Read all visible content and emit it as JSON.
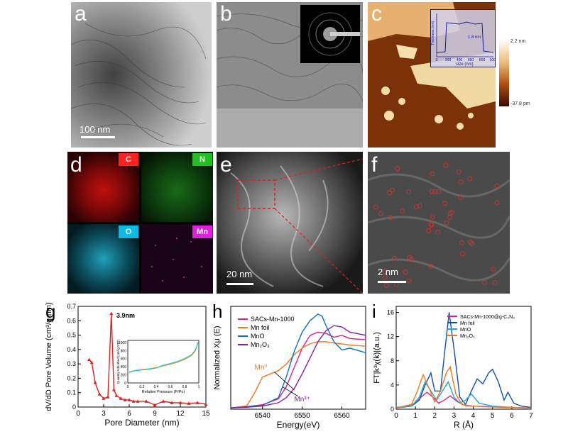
{
  "panels": {
    "a": {
      "label": "a",
      "scale_bar": "100 nm"
    },
    "b": {
      "label": "b"
    },
    "c": {
      "label": "c",
      "inset_xlabel": "size (nm)",
      "inset_ylabel": "Thickness (nm)",
      "inset_annotation": "1.8 nm",
      "inset_xticks": [
        "0",
        "200",
        "400",
        "600",
        "800",
        "1000"
      ],
      "colorbar_top": "2.2 nm",
      "colorbar_bottom": "-37.8 pm"
    },
    "d": {
      "label": "d",
      "maps": [
        {
          "element": "C",
          "color": "#ff2020"
        },
        {
          "element": "N",
          "color": "#20c020"
        },
        {
          "element": "O",
          "color": "#10b8e8"
        },
        {
          "element": "Mn",
          "color": "#e020e0"
        }
      ]
    },
    "e": {
      "label": "e",
      "scale_bar": "20 nm"
    },
    "f": {
      "label": "f",
      "scale_bar": "2 nm"
    },
    "g": {
      "label": "g",
      "annotation": "3.9nm",
      "inset_xlabel": "Relative Pressure (P/Po)",
      "inset_ylabel": "Quantity Adsorbed (cm³/g STP)"
    },
    "h": {
      "label": "h",
      "annotation_mn0": "Mn⁰",
      "annotation_mn3": "Mn³⁺"
    },
    "i": {
      "label": "i"
    }
  },
  "chart_data": [
    {
      "type": "line",
      "panel": "g",
      "xlabel": "Pore Diameter (nm)",
      "ylabel": "dV/dD Pore Volume (cm³/g·nm)",
      "xlim": [
        0,
        15
      ],
      "ylim": [
        0,
        0.7
      ],
      "xticks": [
        0,
        3,
        6,
        9,
        12,
        15
      ],
      "yticks": [
        0.0,
        0.1,
        0.2,
        0.3,
        0.4,
        0.5,
        0.6,
        0.7
      ],
      "series": [
        {
          "color": "#e02020",
          "x": [
            1.3,
            1.6,
            2.0,
            2.5,
            3.0,
            3.5,
            3.9,
            4.2,
            4.5,
            5.0,
            5.5,
            6.0,
            6.5,
            7.0,
            8.0,
            9.0,
            10.0,
            11.0,
            12.0,
            13.0,
            14.0,
            15.0
          ],
          "y": [
            0.33,
            0.31,
            0.17,
            0.09,
            0.06,
            0.07,
            0.65,
            0.12,
            0.08,
            0.06,
            0.05,
            0.05,
            0.04,
            0.04,
            0.04,
            0.015,
            0.04,
            0.03,
            0.03,
            0.025,
            0.03,
            0.02
          ]
        }
      ],
      "inset": {
        "xticks": [
          0.0,
          0.2,
          0.4,
          0.6,
          0.8,
          1.0
        ],
        "yticks": [
          0,
          200,
          400,
          600,
          800,
          1000
        ],
        "series": [
          {
            "color": "#f0a020",
            "x": [
              0.02,
              0.1,
              0.2,
              0.3,
              0.4,
              0.5,
              0.6,
              0.7,
              0.8,
              0.9,
              0.95,
              0.99
            ],
            "y": [
              270,
              310,
              330,
              350,
              380,
              420,
              460,
              510,
              580,
              680,
              790,
              1000
            ]
          },
          {
            "color": "#20c0d0",
            "x": [
              0.02,
              0.1,
              0.2,
              0.3,
              0.4,
              0.5,
              0.6,
              0.7,
              0.8,
              0.9,
              0.95,
              0.99
            ],
            "y": [
              260,
              300,
              320,
              340,
              365,
              440,
              480,
              530,
              600,
              700,
              810,
              1000
            ]
          }
        ]
      }
    },
    {
      "type": "line",
      "panel": "h",
      "xlabel": "Energy(eV)",
      "ylabel": "Normalized Xμ (E)",
      "xlim": [
        6532,
        6566
      ],
      "ylim": [
        0,
        1.6
      ],
      "xticks": [
        6540,
        6550,
        6560
      ],
      "series": [
        {
          "name": "SACs-Mn-1000",
          "color": "#e0208a",
          "x": [
            6532,
            6536,
            6540,
            6544,
            6546,
            6548,
            6550,
            6552,
            6554,
            6556,
            6558,
            6560,
            6562,
            6566
          ],
          "y": [
            0.02,
            0.04,
            0.07,
            0.16,
            0.35,
            0.65,
            0.95,
            1.15,
            1.2,
            1.18,
            1.12,
            1.15,
            1.1,
            1.08
          ]
        },
        {
          "name": "Mn foil",
          "color": "#f07820",
          "x": [
            6532,
            6536,
            6538,
            6540,
            6542,
            6544,
            6546,
            6548,
            6550,
            6552,
            6554,
            6556,
            6558,
            6562,
            6566
          ],
          "y": [
            0.02,
            0.05,
            0.25,
            0.5,
            0.55,
            0.6,
            0.7,
            0.85,
            0.95,
            1.02,
            1.05,
            1.05,
            1.03,
            1.0,
            0.98
          ]
        },
        {
          "name": "MnO",
          "color": "#1070c0",
          "x": [
            6532,
            6536,
            6540,
            6544,
            6546,
            6548,
            6550,
            6552,
            6554,
            6555,
            6556,
            6558,
            6560,
            6562,
            6566
          ],
          "y": [
            0.02,
            0.04,
            0.06,
            0.18,
            0.5,
            0.9,
            1.2,
            1.38,
            1.48,
            1.45,
            1.3,
            1.05,
            0.92,
            0.95,
            0.88
          ]
        },
        {
          "name": "Mn₂O₃",
          "color": "#8020a0",
          "x": [
            6532,
            6536,
            6540,
            6544,
            6546,
            6548,
            6550,
            6552,
            6554,
            6556,
            6558,
            6560,
            6562,
            6566
          ],
          "y": [
            0.02,
            0.03,
            0.05,
            0.1,
            0.18,
            0.32,
            0.55,
            0.8,
            1.05,
            1.22,
            1.3,
            1.28,
            1.2,
            1.15
          ]
        }
      ]
    },
    {
      "type": "line",
      "panel": "i",
      "xlabel": "R (Å)",
      "ylabel": "FT|k³χ(k)|(a.u.)",
      "xlim": [
        0,
        7
      ],
      "ylim": [
        0,
        17
      ],
      "xticks": [
        0,
        1,
        2,
        3,
        4,
        5,
        6,
        7
      ],
      "yticks": [
        0,
        4,
        8,
        12,
        16
      ],
      "series": [
        {
          "name": "SACs-Mn-1000@g-C₃N₄",
          "color": "#e0208a",
          "x": [
            0,
            0.5,
            1.0,
            1.3,
            1.6,
            1.9,
            2.2,
            2.5,
            2.8,
            3.2,
            3.6,
            4.0,
            5.0,
            6.0,
            7.0
          ],
          "y": [
            0.2,
            0.4,
            1.0,
            2.0,
            2.8,
            2.0,
            1.0,
            1.5,
            2.2,
            1.2,
            0.6,
            0.5,
            0.4,
            0.3,
            0.2
          ]
        },
        {
          "name": "Mn foil",
          "color": "#1050b0",
          "x": [
            0,
            0.8,
            1.2,
            1.5,
            1.8,
            2.0,
            2.3,
            2.5,
            2.75,
            3.0,
            3.3,
            3.6,
            3.9,
            4.2,
            4.5,
            4.8,
            5.0,
            5.3,
            5.6,
            5.8,
            6.1,
            6.5,
            7.0
          ],
          "y": [
            0.3,
            0.5,
            1.5,
            4.0,
            6.0,
            3.0,
            3.0,
            9.0,
            16.0,
            10.0,
            2.0,
            0.8,
            3.0,
            5.0,
            4.2,
            6.0,
            6.6,
            4.5,
            1.5,
            2.8,
            1.0,
            0.5,
            0.3
          ]
        },
        {
          "name": "MnO",
          "color": "#20a8d0",
          "x": [
            0,
            0.8,
            1.2,
            1.5,
            1.8,
            2.1,
            2.4,
            2.7,
            3.0,
            3.3,
            3.6,
            3.9,
            4.3,
            5.0,
            6.0,
            7.0
          ],
          "y": [
            0.2,
            0.5,
            2.0,
            4.5,
            3.0,
            1.5,
            3.0,
            4.5,
            2.0,
            1.0,
            1.5,
            2.5,
            1.0,
            0.5,
            0.3,
            0.2
          ]
        },
        {
          "name": "Mn₂O₃",
          "color": "#f07820",
          "x": [
            0,
            0.8,
            1.1,
            1.4,
            1.7,
            2.0,
            2.3,
            2.6,
            2.8,
            3.1,
            3.4,
            3.8,
            4.5,
            5.5,
            7.0
          ],
          "y": [
            0.2,
            0.8,
            3.0,
            5.7,
            3.5,
            1.2,
            3.0,
            6.0,
            7.0,
            2.5,
            0.8,
            0.6,
            0.4,
            0.3,
            0.2
          ]
        }
      ]
    }
  ]
}
